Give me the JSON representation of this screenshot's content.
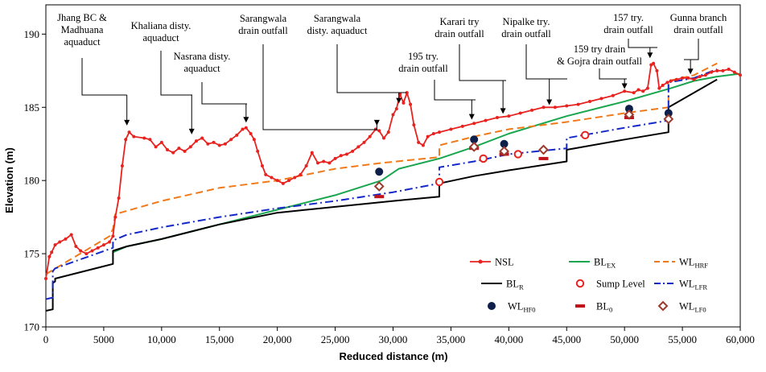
{
  "chart_data": {
    "type": "line",
    "title": "",
    "xlabel": "Reduced distance (m)",
    "ylabel": "Elevation (m)",
    "xlim": [
      0,
      60000
    ],
    "ylim": [
      170,
      192
    ],
    "x_ticks": [
      0,
      5000,
      10000,
      15000,
      20000,
      25000,
      30000,
      35000,
      40000,
      45000,
      50000,
      55000,
      60000
    ],
    "x_tick_labels": [
      "0",
      "5000",
      "10,000",
      "15,000",
      "20,000",
      "25,000",
      "30,000",
      "35,000",
      "40,000",
      "45,000",
      "50,000",
      "55,000",
      "60,000"
    ],
    "y_ticks": [
      170,
      175,
      180,
      185,
      190
    ],
    "y_tick_labels": [
      "170",
      "175",
      "180",
      "185",
      "190"
    ],
    "colors": {
      "nsl": "#e8231f",
      "bl_ex": "#1aa64f",
      "wl_hrf": "#f07a1a",
      "bl_r": "#000000",
      "sump": "#e8231f",
      "wl_lfr": "#1428c8",
      "wl_hf0": "#0d1f4a",
      "bl0": "#c0141a",
      "wl_lf0": "#9b3b2e"
    },
    "legend": [
      {
        "key": "nsl",
        "label": "NSL",
        "sub": ""
      },
      {
        "key": "bl_ex",
        "label": "BL",
        "sub": "EX"
      },
      {
        "key": "wl_hrf",
        "label": "WL",
        "sub": "HRF"
      },
      {
        "key": "bl_r",
        "label": "BL",
        "sub": "R"
      },
      {
        "key": "sump",
        "label": "Sump Level",
        "sub": ""
      },
      {
        "key": "wl_lfr",
        "label": "WL",
        "sub": "LFR"
      },
      {
        "key": "wl_hf0",
        "label": "WL",
        "sub": "HF0"
      },
      {
        "key": "bl0",
        "label": "BL",
        "sub": "0"
      },
      {
        "key": "wl_lf0",
        "label": "WL",
        "sub": "LF0"
      }
    ],
    "series": [
      {
        "name": "NSL",
        "key": "nsl",
        "x": [
          0,
          300,
          500,
          800,
          1200,
          1700,
          2200,
          2600,
          3000,
          3500,
          4000,
          4500,
          5000,
          5500,
          5800,
          6000,
          6300,
          6600,
          6900,
          7200,
          7600,
          8500,
          9000,
          9500,
          10000,
          10500,
          11000,
          11500,
          12000,
          12500,
          13000,
          13500,
          14000,
          14500,
          15000,
          15500,
          16000,
          16500,
          17000,
          17300,
          17700,
          18000,
          18300,
          18700,
          19000,
          19500,
          20000,
          20500,
          21000,
          21500,
          22000,
          22500,
          23000,
          23500,
          24000,
          24500,
          25000,
          25500,
          26000,
          26500,
          27000,
          27500,
          28000,
          28500,
          28800,
          29200,
          29600,
          30000,
          30300,
          30600,
          30900,
          31200,
          31500,
          31800,
          32200,
          32600,
          33000,
          33500,
          34000,
          35000,
          36000,
          37000,
          38000,
          39000,
          40000,
          41000,
          42000,
          43000,
          44000,
          45000,
          46000,
          47000,
          48000,
          49000,
          50000,
          50800,
          51200,
          51600,
          52000,
          52300,
          52500,
          52800,
          53000,
          53300,
          53700,
          54000,
          54500,
          55000,
          55500,
          56000,
          56500,
          57000,
          57500,
          58000,
          58500,
          59000,
          59500,
          60000
        ],
        "y": [
          173.3,
          174.8,
          175.1,
          175.6,
          175.8,
          176.0,
          176.3,
          175.5,
          175.2,
          175.0,
          175.2,
          175.4,
          175.6,
          175.8,
          176.2,
          177.5,
          178.8,
          181.0,
          182.8,
          183.3,
          183.0,
          182.9,
          182.8,
          182.3,
          182.6,
          182.1,
          181.9,
          182.2,
          182.0,
          182.3,
          182.7,
          182.9,
          182.5,
          182.6,
          182.4,
          182.5,
          182.8,
          183.1,
          183.5,
          183.6,
          183.2,
          182.8,
          182.0,
          181.0,
          180.4,
          180.2,
          180.0,
          179.8,
          180.0,
          180.2,
          180.4,
          181.0,
          181.9,
          181.2,
          181.3,
          181.2,
          181.5,
          181.7,
          181.8,
          182.0,
          182.3,
          182.6,
          183.0,
          183.5,
          183.4,
          182.9,
          183.3,
          184.5,
          184.9,
          185.9,
          185.3,
          186.0,
          185.2,
          183.8,
          182.6,
          182.4,
          183.0,
          183.2,
          183.3,
          183.5,
          183.7,
          183.9,
          184.1,
          184.3,
          184.4,
          184.6,
          184.8,
          185.0,
          185.0,
          185.1,
          185.2,
          185.4,
          185.6,
          185.8,
          186.1,
          186.0,
          186.2,
          186.1,
          186.3,
          187.9,
          188.0,
          187.5,
          186.3,
          186.5,
          186.7,
          186.8,
          186.9,
          187.0,
          187.0,
          186.9,
          187.1,
          187.2,
          187.4,
          187.5,
          187.5,
          187.6,
          187.4,
          187.2
        ]
      },
      {
        "name": "BLEX",
        "key": "bl_ex",
        "x": [
          5800,
          7000,
          10000,
          15000,
          20000,
          25000,
          29000,
          30500,
          34000,
          37000,
          40000,
          45000,
          50000,
          54000,
          56000,
          58000,
          60000
        ],
        "y": [
          175.1,
          175.5,
          176.0,
          177.0,
          178.0,
          179.0,
          180.0,
          180.8,
          181.5,
          182.3,
          183.2,
          184.4,
          185.4,
          186.3,
          186.8,
          187.1,
          187.3
        ]
      },
      {
        "name": "WLHRF",
        "key": "wl_hrf",
        "x": [
          0,
          5500,
          5800,
          6000,
          10000,
          15000,
          20000,
          25000,
          29000,
          34000,
          34000,
          37000,
          40000,
          45000,
          50000,
          53800,
          53800,
          56000,
          58000
        ],
        "y": [
          173.6,
          176.2,
          176.7,
          177.7,
          178.6,
          179.5,
          180.0,
          180.8,
          181.2,
          181.6,
          182.4,
          183.0,
          183.5,
          184.0,
          184.6,
          185.0,
          186.8,
          187.2,
          188.0
        ]
      },
      {
        "name": "BLR",
        "key": "bl_r",
        "x": [
          0,
          600,
          600,
          800,
          800,
          5800,
          5800,
          7000,
          10000,
          15000,
          20000,
          25000,
          30000,
          34000,
          34000,
          37000,
          40000,
          45000,
          45000,
          50000,
          53800,
          53800,
          58000
        ],
        "y": [
          171.1,
          171.2,
          173.0,
          173.1,
          173.3,
          174.3,
          175.2,
          175.5,
          176.0,
          177.0,
          177.8,
          178.2,
          178.6,
          178.9,
          179.8,
          180.3,
          180.7,
          181.3,
          182.1,
          182.8,
          183.3,
          185.0,
          186.9
        ]
      },
      {
        "name": "WLLFR",
        "key": "wl_lfr",
        "x": [
          0,
          600,
          600,
          800,
          5800,
          5800,
          7000,
          10000,
          15000,
          20000,
          25000,
          30000,
          34000,
          34000,
          37000,
          40000,
          45000,
          45000,
          50000,
          53800,
          53800,
          56000,
          58000
        ],
        "y": [
          171.9,
          172.0,
          173.8,
          174.0,
          175.4,
          175.9,
          176.3,
          176.8,
          177.5,
          178.1,
          178.6,
          179.2,
          179.8,
          180.9,
          181.3,
          181.8,
          182.2,
          182.9,
          183.6,
          184.1,
          186.7,
          187.0,
          187.6
        ]
      }
    ],
    "sump_level": {
      "x": [
        34000,
        37800,
        40800,
        46600
      ],
      "y": [
        179.9,
        181.5,
        181.8,
        183.1
      ]
    },
    "wl_hf0": {
      "x": [
        28800,
        37000,
        39600,
        50400,
        53800
      ],
      "y": [
        180.6,
        182.8,
        182.5,
        184.9,
        184.6
      ]
    },
    "bl0": {
      "x": [
        28800,
        37000,
        39600,
        43000,
        50400
      ],
      "y": [
        178.9,
        182.2,
        181.8,
        181.5,
        184.3
      ]
    },
    "wl_lf0": {
      "x": [
        28800,
        37000,
        39600,
        43000,
        50400,
        53800
      ],
      "y": [
        179.6,
        182.3,
        182.0,
        182.1,
        184.5,
        184.2
      ]
    },
    "annotations": [
      {
        "lines": [
          "Jhang BC &",
          "Madhuana",
          "aquaduct"
        ],
        "x": 7000,
        "y": 183.7
      },
      {
        "lines": [
          "Khaliana disty.",
          "aquaduct"
        ],
        "x": 12600,
        "y": 183.1
      },
      {
        "lines": [
          "Nasrana disty.",
          "aquaduct"
        ],
        "x": 17300,
        "y": 183.9
      },
      {
        "lines": [
          "Sarangwala",
          "drain outfall"
        ],
        "x": 28600,
        "y": 183.7
      },
      {
        "lines": [
          "Sarangwala",
          "disty. aquaduct"
        ],
        "x": 30500,
        "y": 185.2
      },
      {
        "lines": [
          "195 try.",
          "drain outfall"
        ],
        "x": 36800,
        "y": 184.1
      },
      {
        "lines": [
          "Karari try",
          "drain outfall"
        ],
        "x": 39500,
        "y": 184.5
      },
      {
        "lines": [
          "Nipalke try.",
          "drain outfall"
        ],
        "x": 43500,
        "y": 185.1
      },
      {
        "lines": [
          "159 try drain",
          "& Gojra drain outfall"
        ],
        "x": 50000,
        "y": 186.2
      },
      {
        "lines": [
          "157 try.",
          "drain outfall"
        ],
        "x": 52200,
        "y": 188.3
      },
      {
        "lines": [
          "Gunna branch",
          "drain outfall"
        ],
        "x": 55700,
        "y": 187.2
      }
    ]
  }
}
